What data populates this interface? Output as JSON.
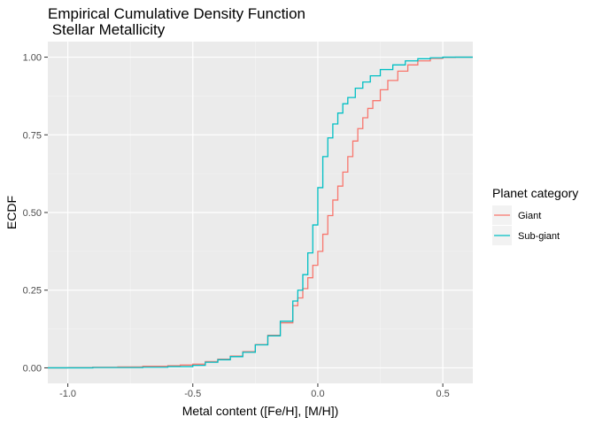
{
  "chart_data": {
    "type": "line",
    "subtype": "step-ecdf",
    "title_lines": [
      "Empirical Cumulative Density Function",
      " Stellar Metallicity"
    ],
    "xlabel": "Metal content ([Fe/H], [M/H])",
    "ylabel": "ECDF",
    "xlim": [
      -1.08,
      0.62
    ],
    "ylim": [
      -0.05,
      1.05
    ],
    "xticks": [
      -1.0,
      -0.5,
      0.0,
      0.5
    ],
    "xtick_labels": [
      "-1.0",
      "-0.5",
      "0.0",
      "0.5"
    ],
    "yticks": [
      0.0,
      0.25,
      0.5,
      0.75,
      1.0
    ],
    "ytick_labels": [
      "0.00",
      "0.25",
      "0.50",
      "0.75",
      "1.00"
    ],
    "grid": true,
    "panel_background": "#ebebeb",
    "legend": {
      "title": "Planet category",
      "position": "right"
    },
    "series": [
      {
        "name": "Giant",
        "color": "#f8766d",
        "points": [
          [
            -1.08,
            0.0
          ],
          [
            -1.0,
            0.001
          ],
          [
            -0.9,
            0.002
          ],
          [
            -0.8,
            0.003
          ],
          [
            -0.7,
            0.005
          ],
          [
            -0.6,
            0.007
          ],
          [
            -0.55,
            0.009
          ],
          [
            -0.5,
            0.012
          ],
          [
            -0.45,
            0.02
          ],
          [
            -0.4,
            0.028
          ],
          [
            -0.35,
            0.038
          ],
          [
            -0.3,
            0.052
          ],
          [
            -0.25,
            0.075
          ],
          [
            -0.2,
            0.105
          ],
          [
            -0.15,
            0.145
          ],
          [
            -0.1,
            0.2
          ],
          [
            -0.08,
            0.225
          ],
          [
            -0.06,
            0.255
          ],
          [
            -0.04,
            0.29
          ],
          [
            -0.02,
            0.33
          ],
          [
            0.0,
            0.375
          ],
          [
            0.02,
            0.43
          ],
          [
            0.04,
            0.49
          ],
          [
            0.06,
            0.54
          ],
          [
            0.08,
            0.585
          ],
          [
            0.1,
            0.63
          ],
          [
            0.12,
            0.68
          ],
          [
            0.14,
            0.73
          ],
          [
            0.16,
            0.77
          ],
          [
            0.18,
            0.805
          ],
          [
            0.2,
            0.835
          ],
          [
            0.22,
            0.86
          ],
          [
            0.25,
            0.895
          ],
          [
            0.28,
            0.925
          ],
          [
            0.32,
            0.955
          ],
          [
            0.36,
            0.975
          ],
          [
            0.4,
            0.988
          ],
          [
            0.45,
            0.996
          ],
          [
            0.5,
            0.999
          ],
          [
            0.55,
            1.0
          ],
          [
            0.62,
            1.0
          ]
        ]
      },
      {
        "name": "Sub-giant",
        "color": "#00bfc4",
        "points": [
          [
            -1.08,
            0.0
          ],
          [
            -1.0,
            0.0
          ],
          [
            -0.9,
            0.001
          ],
          [
            -0.8,
            0.001
          ],
          [
            -0.7,
            0.002
          ],
          [
            -0.6,
            0.004
          ],
          [
            -0.5,
            0.008
          ],
          [
            -0.45,
            0.018
          ],
          [
            -0.4,
            0.026
          ],
          [
            -0.35,
            0.036
          ],
          [
            -0.3,
            0.05
          ],
          [
            -0.25,
            0.074
          ],
          [
            -0.2,
            0.103
          ],
          [
            -0.15,
            0.15
          ],
          [
            -0.1,
            0.215
          ],
          [
            -0.08,
            0.25
          ],
          [
            -0.06,
            0.3
          ],
          [
            -0.04,
            0.37
          ],
          [
            -0.02,
            0.46
          ],
          [
            0.0,
            0.58
          ],
          [
            0.02,
            0.68
          ],
          [
            0.04,
            0.74
          ],
          [
            0.06,
            0.785
          ],
          [
            0.08,
            0.82
          ],
          [
            0.1,
            0.85
          ],
          [
            0.12,
            0.87
          ],
          [
            0.15,
            0.9
          ],
          [
            0.18,
            0.92
          ],
          [
            0.21,
            0.94
          ],
          [
            0.25,
            0.96
          ],
          [
            0.3,
            0.975
          ],
          [
            0.35,
            0.988
          ],
          [
            0.4,
            0.995
          ],
          [
            0.45,
            0.998
          ],
          [
            0.5,
            1.0
          ],
          [
            0.62,
            1.0
          ]
        ]
      }
    ]
  }
}
